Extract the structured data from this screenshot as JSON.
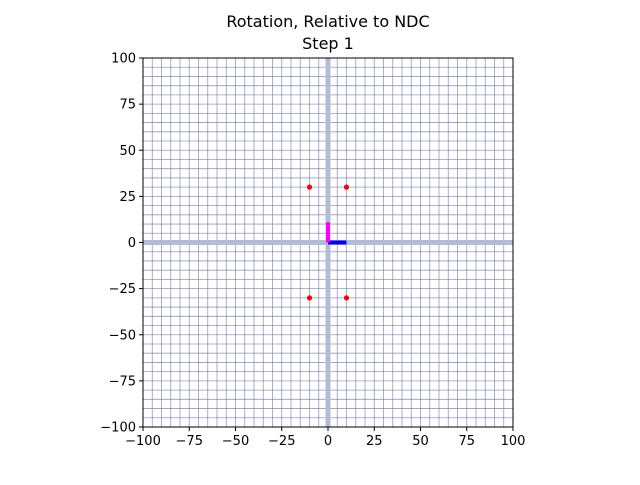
{
  "chart_data": {
    "type": "scatter",
    "title": "Rotation, Relative to NDC",
    "subtitle": "Step 1",
    "xlabel": "",
    "ylabel": "",
    "xlim": [
      -100,
      100
    ],
    "ylim": [
      -100,
      100
    ],
    "xticks": [
      -100,
      -75,
      -50,
      -25,
      0,
      25,
      50,
      75,
      100
    ],
    "yticks": [
      -100,
      -75,
      -50,
      -25,
      0,
      25,
      50,
      75,
      100
    ],
    "xtick_labels": [
      "−100",
      "−75",
      "−50",
      "−25",
      "0",
      "25",
      "50",
      "75",
      "100"
    ],
    "ytick_labels": [
      "−100",
      "−75",
      "−50",
      "−25",
      "0",
      "25",
      "50",
      "75",
      "100"
    ],
    "grid": true,
    "grid_step": 5,
    "grid_color": "#6d7bab",
    "axis_line_color": "#b3bcd6",
    "points": {
      "color": "#ff0000",
      "x": [
        -10,
        10,
        -10,
        10
      ],
      "y": [
        30,
        30,
        -30,
        -30
      ]
    },
    "basis_vectors": [
      {
        "color": "#0000ff",
        "from": [
          0,
          0
        ],
        "to": [
          10,
          0
        ]
      },
      {
        "color": "#ff00ff",
        "from": [
          0,
          0
        ],
        "to": [
          0,
          11
        ]
      }
    ]
  }
}
